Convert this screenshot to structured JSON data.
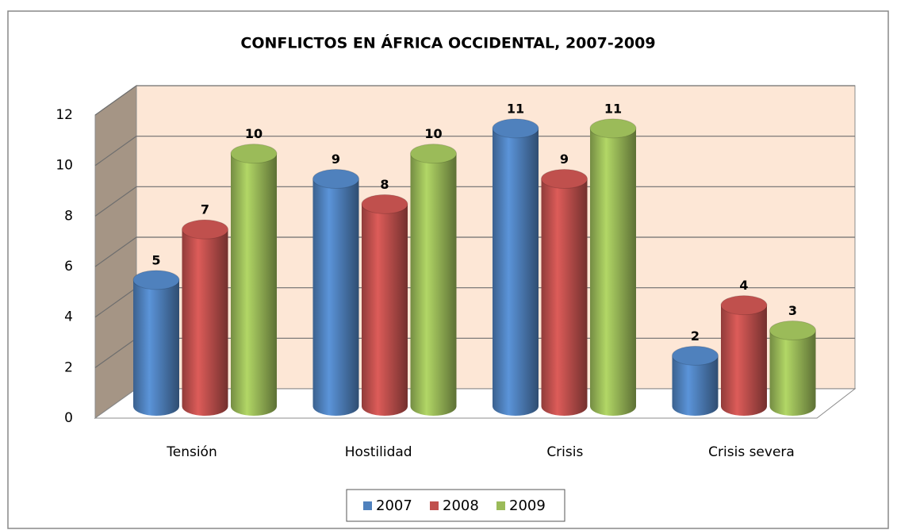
{
  "chart_data": {
    "type": "bar3d",
    "title": "CONFLICTOS EN ÁFRICA OCCIDENTAL, 2007-2009",
    "categories": [
      "Tensión",
      "Hostilidad",
      "Crisis",
      "Crisis severa"
    ],
    "series": [
      {
        "name": "2007",
        "color": "#4f81bd",
        "values": [
          5,
          9,
          11,
          2
        ]
      },
      {
        "name": "2008",
        "color": "#c0504d",
        "values": [
          7,
          8,
          9,
          4
        ]
      },
      {
        "name": "2009",
        "color": "#9bbb59",
        "values": [
          10,
          10,
          11,
          3
        ]
      }
    ],
    "ylim": [
      0,
      12
    ],
    "yticks": [
      0,
      2,
      4,
      6,
      8,
      10,
      12
    ],
    "grid": true,
    "legend": "bottom"
  }
}
